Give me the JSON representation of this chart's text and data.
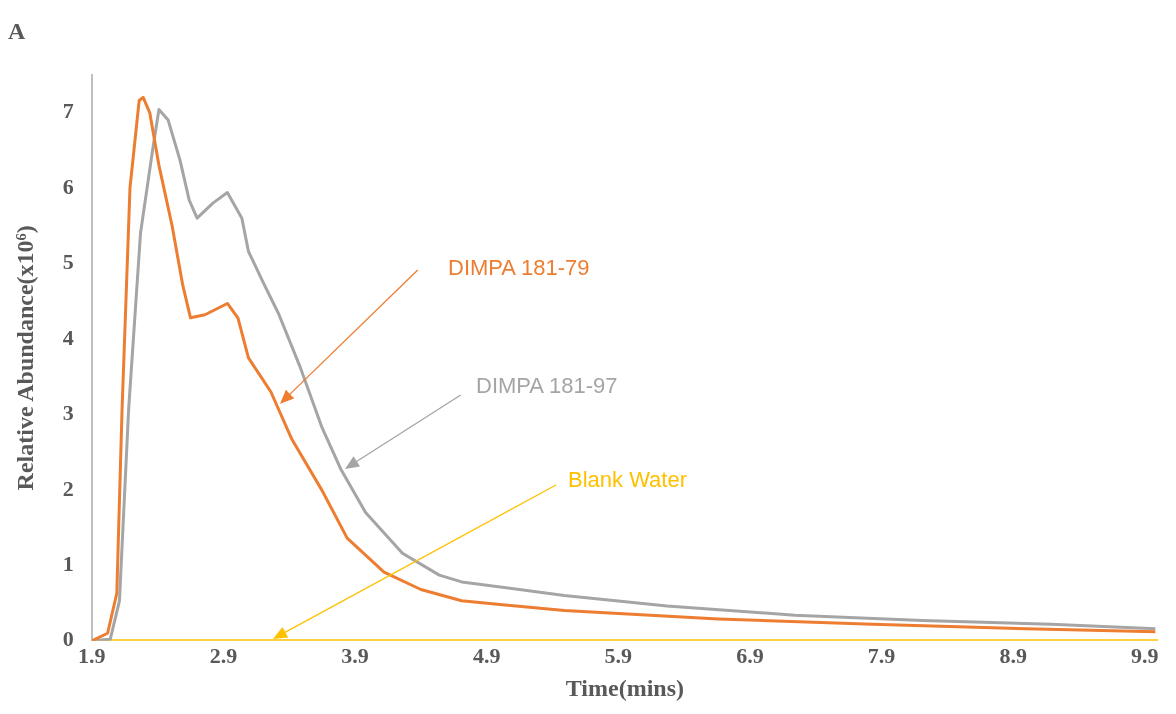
{
  "chart_data": {
    "type": "line",
    "title": "A",
    "xlabel": "Time(mins)",
    "ylabel": "Relative Abundance(x10⁶)",
    "xlim": [
      1.9,
      10
    ],
    "xticks": [
      {
        "value": 1.9,
        "label": "1.9"
      },
      {
        "value": 2.9,
        "label": "2.9"
      },
      {
        "value": 3.9,
        "label": "3.9"
      },
      {
        "value": 4.9,
        "label": "4.9"
      },
      {
        "value": 5.9,
        "label": "5.9"
      },
      {
        "value": 6.9,
        "label": "6.9"
      },
      {
        "value": 7.9,
        "label": "7.9"
      },
      {
        "value": 8.9,
        "label": "8.9"
      },
      {
        "value": 9.9,
        "label": "9.9"
      }
    ],
    "ylim": [
      0,
      7.5
    ],
    "yticks": [
      0,
      1,
      2,
      3,
      4,
      5,
      6,
      7
    ],
    "grid": false,
    "legend": false,
    "marker": "none",
    "line_style": "solid",
    "series": [
      {
        "name": "DIMPA 181-79",
        "color": "#ed7d31",
        "x": [
          1.9,
          2.02,
          2.09,
          2.13,
          2.19,
          2.26,
          2.29,
          2.34,
          2.41,
          2.51,
          2.59,
          2.65,
          2.76,
          2.93,
          3.01,
          3.09,
          3.26,
          3.42,
          3.65,
          3.84,
          4.12,
          4.4,
          4.71,
          5.49,
          6.66,
          7.83,
          9.0,
          9.98
        ],
        "values": [
          0,
          0.1,
          0.63,
          3.07,
          6.0,
          7.16,
          7.2,
          7.0,
          6.3,
          5.5,
          4.72,
          4.28,
          4.32,
          4.47,
          4.28,
          3.75,
          3.3,
          2.67,
          1.99,
          1.36,
          0.91,
          0.68,
          0.53,
          0.4,
          0.29,
          0.22,
          0.16,
          0.12
        ]
      },
      {
        "name": "DIMPA 181-97",
        "color": "#a5a5a5",
        "x": [
          1.9,
          2.04,
          2.11,
          2.18,
          2.27,
          2.36,
          2.41,
          2.48,
          2.57,
          2.64,
          2.7,
          2.82,
          2.93,
          3.04,
          3.09,
          3.21,
          3.32,
          3.48,
          3.65,
          3.79,
          3.98,
          4.26,
          4.54,
          4.71,
          5.49,
          6.27,
          7.24,
          8.21,
          9.19,
          9.98
        ],
        "values": [
          0,
          0.02,
          0.53,
          3.07,
          5.4,
          6.48,
          7.04,
          6.9,
          6.37,
          5.84,
          5.6,
          5.8,
          5.94,
          5.6,
          5.16,
          4.72,
          4.33,
          3.64,
          2.82,
          2.28,
          1.7,
          1.16,
          0.87,
          0.78,
          0.6,
          0.46,
          0.34,
          0.27,
          0.22,
          0.16
        ]
      },
      {
        "name": "Blank Water",
        "color": "#ffc000",
        "x": [
          1.9,
          10
        ],
        "values": [
          0,
          0
        ]
      }
    ]
  }
}
